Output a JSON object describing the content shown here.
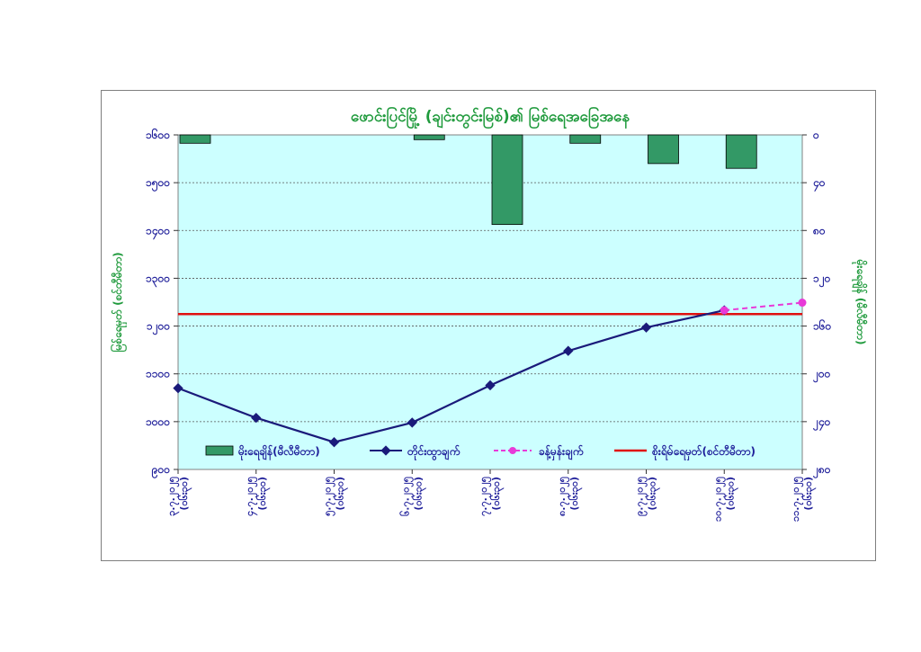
{
  "chart_data": {
    "type": "bar+line",
    "title": "ဖောင်းပြင်မြို့ (ချင်းတွင်းမြစ်)၏ မြစ်ရေအခြေအနေ",
    "ylabel_left": "မြစ်ရေမှတ် (စင်တီမီတာ)",
    "ylabel_right": "မိုးရေချိန် (မီလီမီတာ)",
    "ylim_left": [
      900,
      1600
    ],
    "ylim_right_reversed": [
      0,
      280
    ],
    "yticks_left": [
      "၁၆၀၀",
      "၁၅၀၀",
      "၁၄၀၀",
      "၁၃၀၀",
      "၁၂၀၀",
      "၁၁၀၀",
      "၁၀၀၀",
      "၉၀၀"
    ],
    "yticks_right": [
      "၀",
      "၄၀",
      "၈၀",
      "၁၂၀",
      "၁၆၀",
      "၂၀၀",
      "၂၄၀",
      "၂၈၀"
    ],
    "categories": [
      [
        "၃.၇.၂၀၂၅",
        "(၀၆း၃၀)"
      ],
      [
        "၄.၇.၂၀၂၅",
        "(၀၆း၃၀)"
      ],
      [
        "၅.၇.၂၀၂၅",
        "(၀၆း၃၀)"
      ],
      [
        "၆.၇.၂၀၂၅",
        "(၀၆း၃၀)"
      ],
      [
        "၇.၇.၂၀၂၅",
        "(၀၆း၃၀)"
      ],
      [
        "၈.၇.၂၀၂၅",
        "(၀၆း၃၀)"
      ],
      [
        "၉.၇.၂၀၂၅",
        "(၀၆း၃၀)"
      ],
      [
        "၁၀.၇.၂၀၂၅",
        "(၀၆း၃၀)"
      ],
      [
        "၁၁.၇.၂၀၂၅",
        "(၀၆း၃၀)"
      ]
    ],
    "series": [
      {
        "name": "မိုးရေချိန်(မီလီမီတာ)",
        "type": "bar",
        "axis": "right",
        "color": "#339966",
        "values": [
          7,
          0,
          0,
          4,
          75,
          7,
          24,
          28,
          null
        ]
      },
      {
        "name": "တိုင်းထွာချက်",
        "type": "line",
        "axis": "left",
        "color": "#1a1a7a",
        "values": [
          1070,
          1008,
          957,
          998,
          1076,
          1148,
          1197,
          1233,
          null
        ]
      },
      {
        "name": "ခန့်မှန်းချက်",
        "type": "line-dashed",
        "axis": "left",
        "color": "#e83ad8",
        "values": [
          null,
          null,
          null,
          null,
          null,
          null,
          null,
          1233,
          1249
        ]
      },
      {
        "name": "စိုးရိမ်ရေမှတ်(စင်တီမီတာ)",
        "type": "hline",
        "axis": "left",
        "color": "#e01010",
        "value": 1225
      }
    ],
    "legend_position": "bottom-inside",
    "grid": "horizontal-dotted",
    "plot_background": "#ccffff"
  }
}
